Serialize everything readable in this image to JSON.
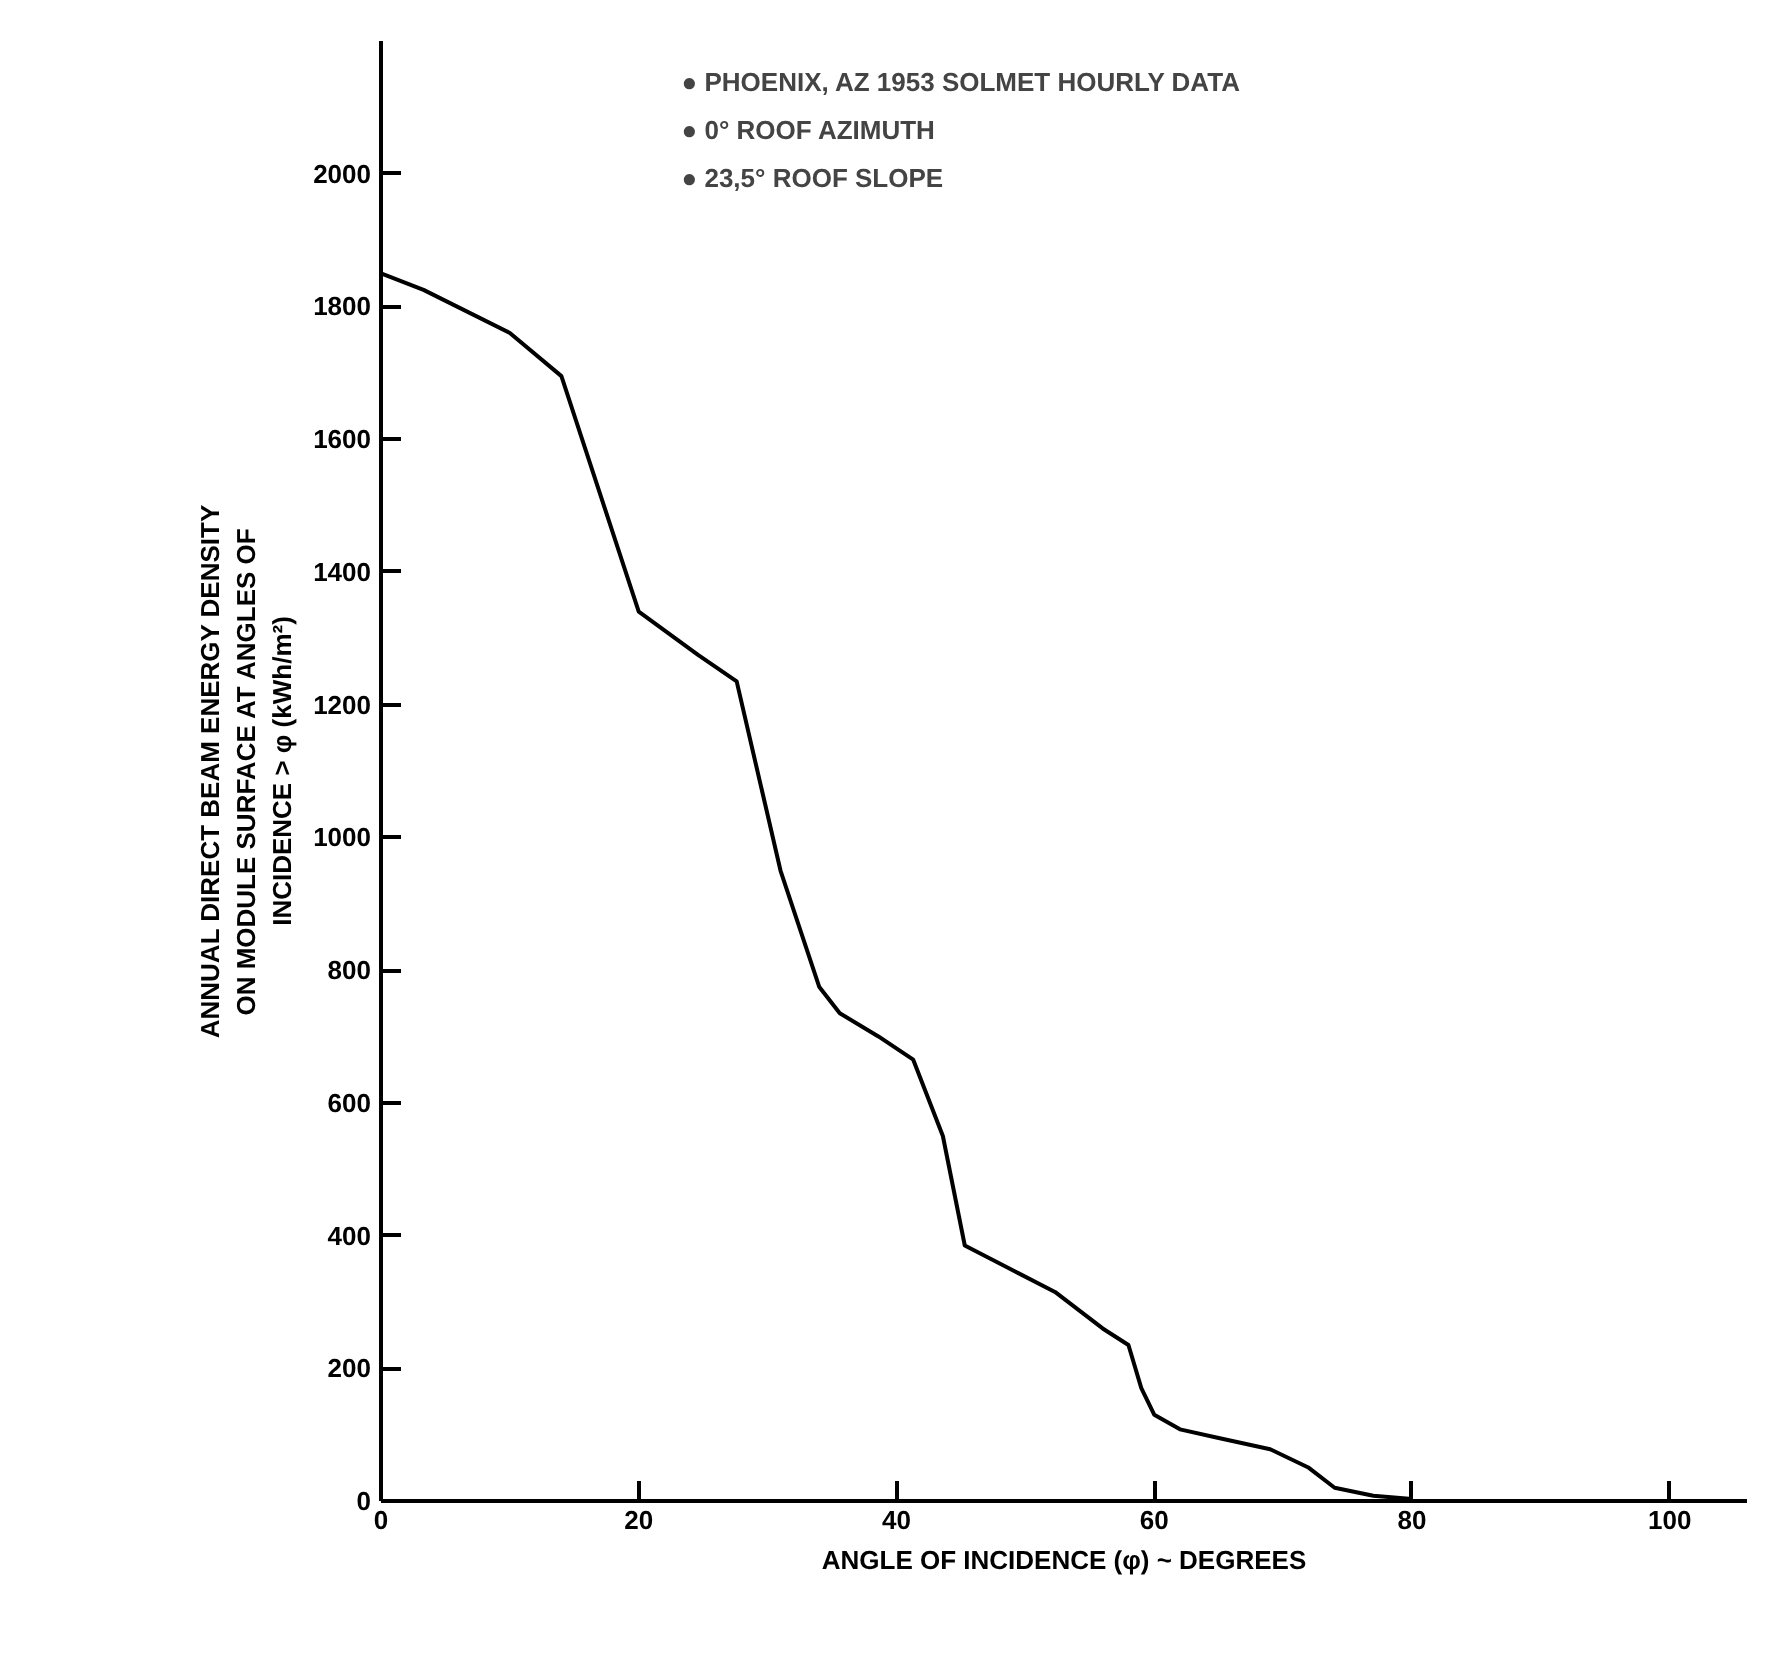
{
  "chart_data": {
    "type": "line",
    "xlabel": "ANGLE OF INCIDENCE (φ) ~ DEGREES",
    "ylabel": "ANNUAL DIRECT BEAM ENERGY DENSITY\nON MODULE SURFACE AT ANGLES OF\nINCIDENCE > φ (kWh/m²)",
    "annotations": [
      "● PHOENIX, AZ 1953 SOLMET HOURLY DATA",
      "● 0° ROOF AZIMUTH",
      "● 23,5° ROOF SLOPE"
    ],
    "x": [
      0,
      3.3,
      10,
      14,
      20,
      24.6,
      27.6,
      31,
      34,
      35.6,
      38.6,
      41.3,
      43.6,
      45.3,
      52.3,
      56,
      58,
      59,
      60,
      62,
      65,
      69,
      72,
      74,
      77,
      80
    ],
    "series": [
      {
        "color": "#000000",
        "values": [
          1850,
          1825,
          1760,
          1695,
          1340,
          1275,
          1235,
          950,
          775,
          735,
          700,
          665,
          550,
          385,
          315,
          260,
          235,
          170,
          130,
          108,
          95,
          78,
          50,
          20,
          8,
          3
        ]
      }
    ],
    "xlim": [
      0,
      106
    ],
    "ylim": [
      0,
      2200
    ],
    "xticks": [
      0,
      20,
      40,
      60,
      80,
      100
    ],
    "yticks": [
      0,
      200,
      400,
      600,
      800,
      1000,
      1200,
      1400,
      1600,
      1800,
      2000
    ],
    "grid": false,
    "marker": "none",
    "line_style": "solid"
  }
}
